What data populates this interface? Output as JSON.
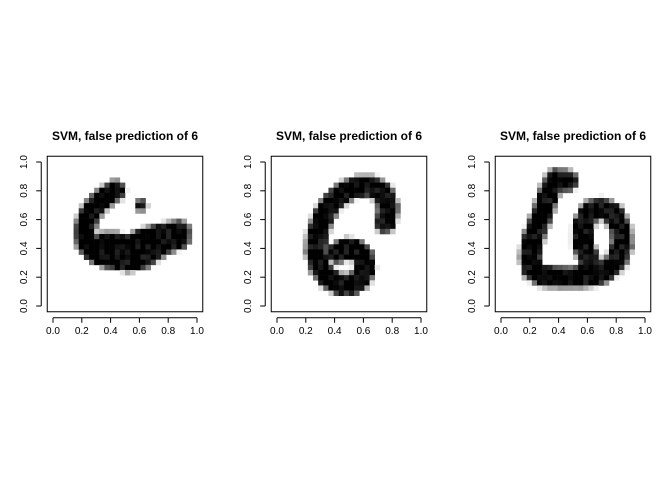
{
  "chart_data": [
    {
      "type": "heatmap",
      "title": "SVM, false prediction of 6",
      "xlabel": "",
      "ylabel": "",
      "xlim": [
        0,
        1
      ],
      "ylim": [
        0,
        1
      ],
      "x_ticks": [
        "0.0",
        "0.2",
        "0.4",
        "0.6",
        "0.8",
        "1.0"
      ],
      "y_ticks": [
        "0.0",
        "0.2",
        "0.4",
        "0.6",
        "0.8",
        "1.0"
      ],
      "colormap": [
        "#ffffff",
        "#000000"
      ],
      "grid": false,
      "strokes": [
        [
          [
            0.43,
            0.8
          ],
          [
            0.35,
            0.75
          ],
          [
            0.28,
            0.68
          ],
          [
            0.24,
            0.6
          ],
          [
            0.22,
            0.52
          ],
          [
            0.23,
            0.44
          ],
          [
            0.28,
            0.38
          ],
          [
            0.36,
            0.34
          ],
          [
            0.46,
            0.32
          ],
          [
            0.56,
            0.32
          ],
          [
            0.66,
            0.36
          ],
          [
            0.76,
            0.42
          ],
          [
            0.84,
            0.48
          ],
          [
            0.88,
            0.51
          ]
        ],
        [
          [
            0.88,
            0.52
          ],
          [
            0.76,
            0.5
          ],
          [
            0.64,
            0.47
          ],
          [
            0.54,
            0.43
          ],
          [
            0.46,
            0.38
          ],
          [
            0.44,
            0.34
          ],
          [
            0.52,
            0.31
          ],
          [
            0.62,
            0.33
          ],
          [
            0.72,
            0.4
          ],
          [
            0.82,
            0.45
          ],
          [
            0.88,
            0.47
          ]
        ],
        [
          [
            0.28,
            0.4
          ],
          [
            0.36,
            0.44
          ],
          [
            0.44,
            0.44
          ],
          [
            0.5,
            0.4
          ]
        ]
      ],
      "dots": [
        [
          0.61,
          0.7
        ]
      ]
    },
    {
      "type": "heatmap",
      "title": "SVM, false prediction of 6",
      "xlabel": "",
      "ylabel": "",
      "xlim": [
        0,
        1
      ],
      "ylim": [
        0,
        1
      ],
      "x_ticks": [
        "0.0",
        "0.2",
        "0.4",
        "0.6",
        "0.8",
        "1.0"
      ],
      "y_ticks": [
        "0.0",
        "0.2",
        "0.4",
        "0.6",
        "0.8",
        "1.0"
      ],
      "colormap": [
        "#ffffff",
        "#000000"
      ],
      "grid": false,
      "strokes": [
        [
          [
            0.75,
            0.58
          ],
          [
            0.77,
            0.68
          ],
          [
            0.74,
            0.78
          ],
          [
            0.66,
            0.83
          ],
          [
            0.56,
            0.83
          ],
          [
            0.46,
            0.79
          ],
          [
            0.38,
            0.72
          ],
          [
            0.32,
            0.62
          ],
          [
            0.28,
            0.5
          ],
          [
            0.27,
            0.38
          ],
          [
            0.3,
            0.27
          ],
          [
            0.36,
            0.19
          ],
          [
            0.44,
            0.15
          ],
          [
            0.52,
            0.15
          ],
          [
            0.58,
            0.19
          ],
          [
            0.61,
            0.26
          ],
          [
            0.6,
            0.34
          ],
          [
            0.55,
            0.39
          ],
          [
            0.48,
            0.4
          ],
          [
            0.42,
            0.37
          ]
        ]
      ],
      "dots": []
    },
    {
      "type": "heatmap",
      "title": "SVM, false prediction of 6",
      "xlabel": "",
      "ylabel": "",
      "xlim": [
        0,
        1
      ],
      "ylim": [
        0,
        1
      ],
      "x_ticks": [
        "0.0",
        "0.2",
        "0.4",
        "0.6",
        "0.8",
        "1.0"
      ],
      "y_ticks": [
        "0.0",
        "0.2",
        "0.4",
        "0.6",
        "0.8",
        "1.0"
      ],
      "colormap": [
        "#ffffff",
        "#000000"
      ],
      "grid": false,
      "strokes": [
        [
          [
            0.46,
            0.87
          ],
          [
            0.38,
            0.88
          ],
          [
            0.33,
            0.78
          ],
          [
            0.28,
            0.62
          ],
          [
            0.22,
            0.46
          ],
          [
            0.2,
            0.34
          ],
          [
            0.22,
            0.25
          ],
          [
            0.28,
            0.21
          ],
          [
            0.4,
            0.2
          ],
          [
            0.52,
            0.2
          ],
          [
            0.64,
            0.21
          ],
          [
            0.7,
            0.23
          ]
        ],
        [
          [
            0.68,
            0.23
          ],
          [
            0.62,
            0.3
          ],
          [
            0.57,
            0.42
          ],
          [
            0.57,
            0.56
          ],
          [
            0.62,
            0.66
          ],
          [
            0.7,
            0.68
          ],
          [
            0.78,
            0.64
          ],
          [
            0.83,
            0.54
          ],
          [
            0.84,
            0.42
          ],
          [
            0.8,
            0.31
          ],
          [
            0.72,
            0.24
          ],
          [
            0.64,
            0.22
          ],
          [
            0.58,
            0.24
          ]
        ]
      ],
      "dots": []
    }
  ]
}
